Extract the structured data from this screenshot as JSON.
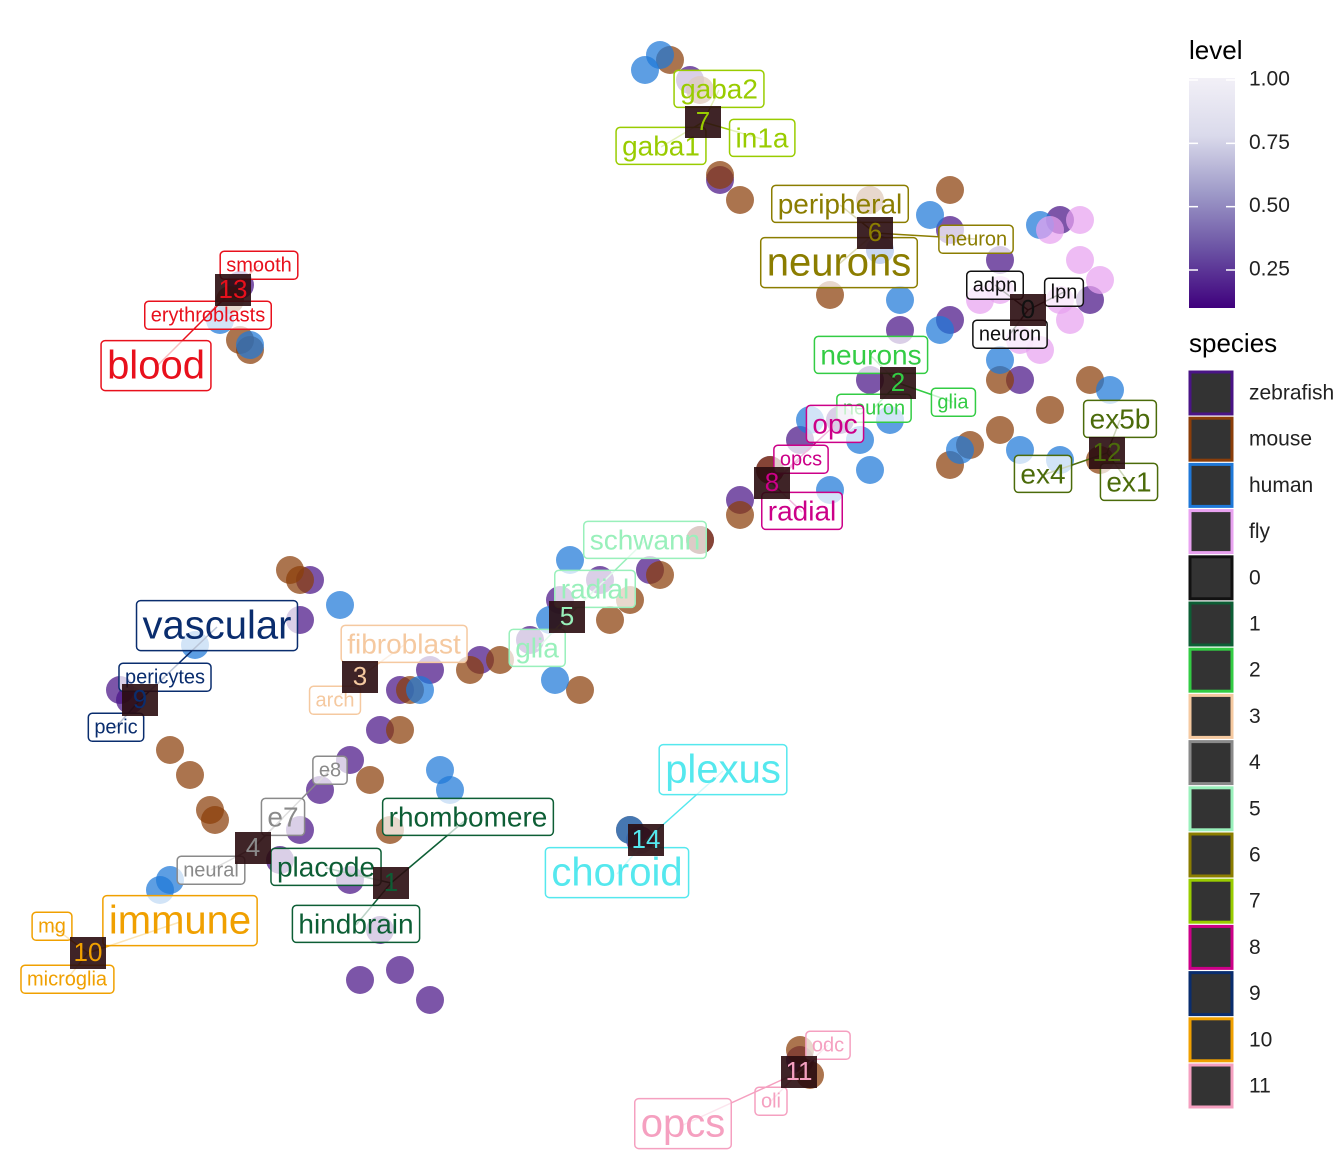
{
  "chart_data": {
    "type": "scatter",
    "series": [
      {
        "name": "zebrafish",
        "color": "#4a1486",
        "x": [
          100,
          106,
          109,
          95,
          102,
          90,
          87,
          84,
          80,
          77,
          74,
          70,
          65,
          60,
          56,
          53,
          48,
          43,
          40,
          38,
          35,
          32,
          30,
          28,
          35,
          38,
          40,
          43,
          36,
          31,
          30,
          13,
          12,
          24,
          80,
          64,
          69,
          72,
          88,
          95
        ],
        "y": [
          26,
          22,
          30,
          32,
          38,
          33,
          38,
          42,
          44,
          47,
          50,
          54,
          57,
          58,
          60,
          64,
          66,
          67,
          69,
          73,
          76,
          79,
          83,
          86,
          88,
          93,
          97,
          100,
          98,
          58,
          62,
          70,
          69,
          28.5,
          106,
          84,
          8,
          18,
          25,
          23
        ]
      },
      {
        "name": "mouse",
        "color": "#8b3e0a",
        "x": [
          67,
          70,
          72,
          74,
          83,
          87,
          95,
          100,
          105,
          97,
          95,
          100,
          109,
          110,
          77,
          74,
          70,
          66,
          63,
          61,
          58,
          50,
          47,
          30,
          29,
          41,
          40,
          17,
          19,
          21,
          21.5,
          25,
          24,
          23,
          37,
          39,
          63,
          80,
          81
        ],
        "y": [
          6,
          9,
          17.5,
          20,
          29.5,
          20,
          19,
          38,
          41,
          44.5,
          46.5,
          43,
          38,
          46,
          47,
          51.5,
          54,
          57.5,
          60,
          62,
          69,
          66,
          67,
          58,
          57,
          69,
          73,
          75,
          77.5,
          81,
          82,
          35,
          34,
          30,
          78,
          83,
          83,
          105,
          107.5
        ]
      },
      {
        "name": "human",
        "color": "#1f78d8",
        "x": [
          66,
          64.5,
          93,
          104,
          90,
          88,
          94,
          100,
          89,
          86,
          81,
          87,
          83,
          57,
          55.5,
          55,
          42,
          44,
          45,
          34,
          19.5,
          17,
          16,
          25,
          22,
          63,
          96,
          102,
          106,
          111
        ],
        "y": [
          5.5,
          7,
          21.5,
          22.5,
          30,
          25,
          33,
          36,
          42,
          44,
          42,
          47,
          49,
          56,
          68,
          62,
          69,
          77,
          79,
          60.5,
          64.5,
          88,
          89,
          34.5,
          32,
          83,
          45,
          45,
          46,
          39
        ]
      },
      {
        "name": "fly",
        "color": "#e8a2f0",
        "x": [
          105,
          108,
          107,
          104,
          100,
          110,
          106,
          102,
          98,
          108
        ],
        "y": [
          23,
          26,
          32,
          35,
          29,
          28,
          30,
          34,
          30,
          22
        ]
      }
    ],
    "clusters": [
      {
        "name": "0",
        "color": "#111111",
        "x": 102.8,
        "y": 31,
        "labels": [
          {
            "text": "adpn",
            "x": 99.5,
            "y": 28.5
          },
          {
            "text": "lpn",
            "x": 106.4,
            "y": 29.2
          },
          {
            "text": "neuron",
            "x": 101,
            "y": 33.4
          }
        ]
      },
      {
        "name": "1",
        "color": "#0d5e35",
        "x": 39.1,
        "y": 88.3,
        "labels": [
          {
            "text": "rhombomere",
            "x": 46.8,
            "y": 81.8
          },
          {
            "text": "placode",
            "x": 32.6,
            "y": 86.8
          },
          {
            "text": "hindbrain",
            "x": 35.6,
            "y": 92.5
          }
        ]
      },
      {
        "name": "2",
        "color": "#33cc44",
        "x": 89.8,
        "y": 38.3,
        "labels": [
          {
            "text": "neurons",
            "x": 87.1,
            "y": 35.6
          },
          {
            "text": "neuron",
            "x": 87.4,
            "y": 40.8
          },
          {
            "text": "glia",
            "x": 95.3,
            "y": 40.2
          }
        ]
      },
      {
        "name": "3",
        "color": "#f5c9a0",
        "x": 36,
        "y": 67.7,
        "labels": [
          {
            "text": "fibroblast",
            "x": 40.4,
            "y": 64.5
          },
          {
            "text": "arch",
            "x": 33.5,
            "y": 70
          }
        ]
      },
      {
        "name": "4",
        "color": "#8a8a8a",
        "x": 25.3,
        "y": 84.8,
        "labels": [
          {
            "text": "e8",
            "x": 33,
            "y": 77
          },
          {
            "text": "e7",
            "x": 28.3,
            "y": 81.8
          },
          {
            "text": "neural",
            "x": 21.1,
            "y": 87
          }
        ]
      },
      {
        "name": "5",
        "color": "#99f0bb",
        "x": 56.7,
        "y": 61.7,
        "labels": [
          {
            "text": "schwann",
            "x": 64.5,
            "y": 54.1
          },
          {
            "text": "radial",
            "x": 59.5,
            "y": 59
          },
          {
            "text": "glia",
            "x": 53.7,
            "y": 64.9
          }
        ]
      },
      {
        "name": "6",
        "color": "#8b7d00",
        "x": 87.5,
        "y": 23.3,
        "labels": [
          {
            "text": "peripheral",
            "x": 84,
            "y": 20.5
          },
          {
            "text": "neurons",
            "x": 83.9,
            "y": 26.4
          },
          {
            "text": "neuron",
            "x": 97.6,
            "y": 23.9
          }
        ]
      },
      {
        "name": "7",
        "color": "#99cc00",
        "x": 70.3,
        "y": 12.2,
        "labels": [
          {
            "text": "gaba2",
            "x": 71.9,
            "y": 9
          },
          {
            "text": "gaba1",
            "x": 66.1,
            "y": 14.7
          },
          {
            "text": "in1a",
            "x": 76.2,
            "y": 13.9
          }
        ]
      },
      {
        "name": "8",
        "color": "#cc0088",
        "x": 77.2,
        "y": 48.3,
        "labels": [
          {
            "text": "opc",
            "x": 83.5,
            "y": 42.5
          },
          {
            "text": "opcs",
            "x": 80.1,
            "y": 45.9
          },
          {
            "text": "radial",
            "x": 80.2,
            "y": 51.2
          }
        ]
      },
      {
        "name": "9",
        "color": "#0a2d6e",
        "x": 14,
        "y": 70,
        "labels": [
          {
            "text": "vascular",
            "x": 21.7,
            "y": 62.7
          },
          {
            "text": "pericytes",
            "x": 16.5,
            "y": 67.7
          },
          {
            "text": "peric",
            "x": 11.6,
            "y": 72.7
          }
        ]
      },
      {
        "name": "10",
        "color": "#f0a000",
        "x": 8.8,
        "y": 95.3,
        "labels": [
          {
            "text": "immune",
            "x": 18,
            "y": 92.2
          },
          {
            "text": "mg",
            "x": 5.2,
            "y": 92.6
          },
          {
            "text": "microglia",
            "x": 6.7,
            "y": 97.9
          }
        ]
      },
      {
        "name": "11",
        "color": "#f5a0c0",
        "x": 79.9,
        "y": 107.2,
        "labels": [
          {
            "text": "odc",
            "x": 82.8,
            "y": 104.5
          },
          {
            "text": "oli",
            "x": 77.1,
            "y": 110.1
          },
          {
            "text": "opcs",
            "x": 68.3,
            "y": 112.5
          }
        ]
      },
      {
        "name": "12",
        "color": "#4b6b0a",
        "x": 110.7,
        "y": 45.3,
        "labels": [
          {
            "text": "ex5b",
            "x": 112,
            "y": 42
          },
          {
            "text": "ex4",
            "x": 104.3,
            "y": 47.5
          },
          {
            "text": "ex1",
            "x": 112.9,
            "y": 48.3
          }
        ]
      },
      {
        "name": "13",
        "color": "#e8101c",
        "x": 23.3,
        "y": 29,
        "labels": [
          {
            "text": "smooth",
            "x": 25.9,
            "y": 26.5
          },
          {
            "text": "erythroblasts",
            "x": 20.8,
            "y": 31.5
          },
          {
            "text": "blood",
            "x": 15.6,
            "y": 36.7
          }
        ]
      },
      {
        "name": "14",
        "color": "#55e8ee",
        "x": 64.6,
        "y": 84,
        "labels": [
          {
            "text": "plexus",
            "x": 72.3,
            "y": 77.1
          },
          {
            "text": "choroid",
            "x": 61.7,
            "y": 87.4
          }
        ]
      }
    ],
    "colorbar": {
      "title": "level",
      "colors": [
        "#3f007d",
        "#6a51a3",
        "#9e9ac8",
        "#dadaeb",
        "#f2f0f7"
      ],
      "lim": [
        0.1,
        1.0
      ],
      "ticks": [
        {
          "value": 0.25,
          "label": "0.25"
        },
        {
          "value": 0.5,
          "label": "0.50"
        },
        {
          "value": 0.75,
          "label": "0.75"
        },
        {
          "value": 1,
          "label": "1.00"
        }
      ]
    },
    "legend_title": "species"
  }
}
